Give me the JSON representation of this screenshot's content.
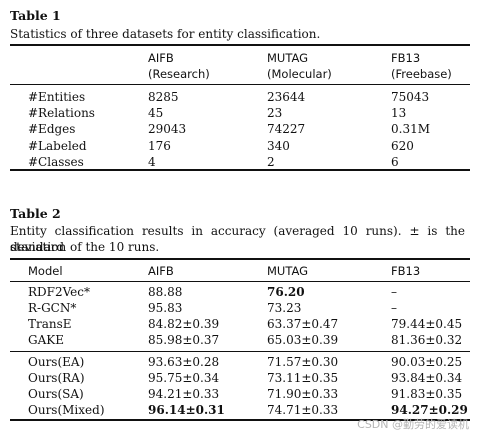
{
  "table1": {
    "label": "Table 1",
    "caption": "Statistics of three datasets for entity classification.",
    "headers": [
      {
        "name": "AIFB",
        "sub": "(Research)"
      },
      {
        "name": "MUTAG",
        "sub": "(Molecular)"
      },
      {
        "name": "FB13",
        "sub": "(Freebase)"
      }
    ],
    "rows": [
      {
        "label": "#Entities",
        "cells": [
          "8285",
          "23644",
          "75043"
        ]
      },
      {
        "label": "#Relations",
        "cells": [
          "45",
          "23",
          "13"
        ]
      },
      {
        "label": "#Edges",
        "cells": [
          "29043",
          "74227",
          "0.31M"
        ]
      },
      {
        "label": "#Labeled",
        "cells": [
          "176",
          "340",
          "620"
        ]
      },
      {
        "label": "#Classes",
        "cells": [
          "4",
          "2",
          "6"
        ]
      }
    ]
  },
  "table2": {
    "label": "Table 2",
    "caption_line1": "Entity classification results in accuracy (averaged 10 runs). ± is the standard",
    "caption_line2": "deviation of the 10 runs.",
    "headers": [
      "Model",
      "AIFB",
      "MUTAG",
      "FB13"
    ],
    "rows": [
      {
        "model": "RDF2Vec*",
        "cells": [
          "88.88",
          "76.20",
          "–"
        ],
        "bold": [
          false,
          true,
          false
        ]
      },
      {
        "model": "R-GCN*",
        "cells": [
          "95.83",
          "73.23",
          "–"
        ],
        "bold": [
          false,
          false,
          false
        ]
      },
      {
        "model": "TransE",
        "cells": [
          "84.82±0.39",
          "63.37±0.47",
          "79.44±0.45"
        ],
        "bold": [
          false,
          false,
          false
        ]
      },
      {
        "model": "GAKE",
        "cells": [
          "85.98±0.37",
          "65.03±0.39",
          "81.36±0.32"
        ],
        "bold": [
          false,
          false,
          false
        ]
      },
      {
        "model": "Ours(EA)",
        "cells": [
          "93.63±0.28",
          "71.57±0.30",
          "90.03±0.25"
        ],
        "bold": [
          false,
          false,
          false
        ]
      },
      {
        "model": "Ours(RA)",
        "cells": [
          "95.75±0.34",
          "73.11±0.35",
          "93.84±0.34"
        ],
        "bold": [
          false,
          false,
          false
        ]
      },
      {
        "model": "Ours(SA)",
        "cells": [
          "94.21±0.33",
          "71.90±0.33",
          "91.83±0.35"
        ],
        "bold": [
          false,
          false,
          false
        ]
      },
      {
        "model": "Ours(Mixed)",
        "cells": [
          "96.14±0.31",
          "74.71±0.33",
          "94.27±0.29"
        ],
        "bold": [
          true,
          false,
          true
        ]
      }
    ]
  },
  "watermark": "CSDN @勤劳的爱读机"
}
